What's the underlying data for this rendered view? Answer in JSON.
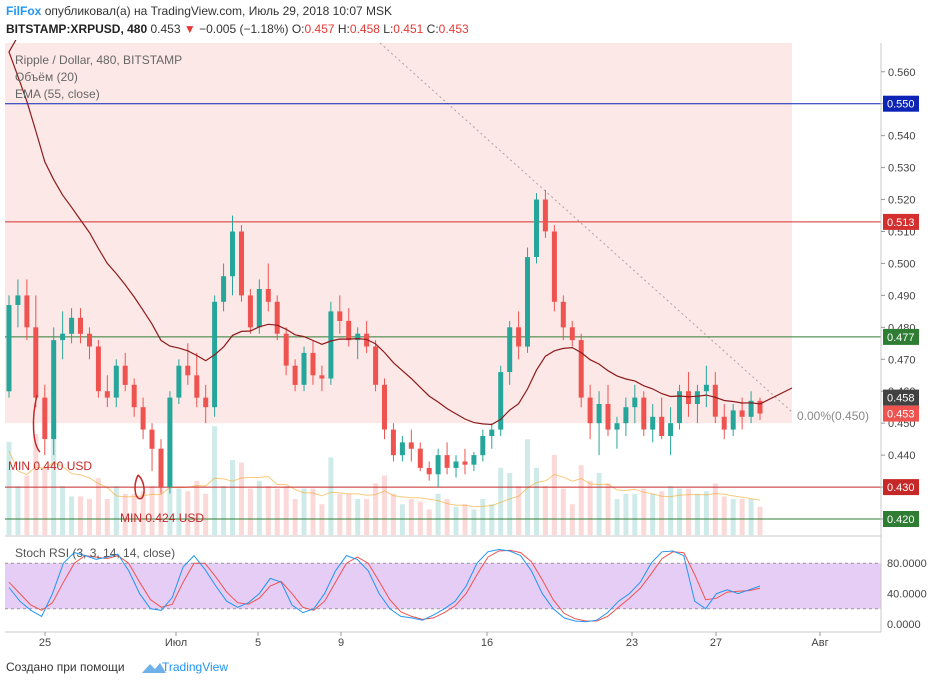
{
  "header": {
    "brand": "FilFox",
    "published": "опубликовал(а) на TradingView.com, Июль 29, 2018 10:07 MSK",
    "symbol": "BITSTAMP:XRPUSD, 480",
    "last": "0.453",
    "change": "−0.005 (−1.18%)",
    "o_label": "O:",
    "o_val": "0.457",
    "h_label": "H:",
    "h_val": "0.458",
    "l_label": "L:",
    "l_val": "0.451",
    "c_label": "C:",
    "c_val": "0.453"
  },
  "legend": {
    "title": "Ripple / Dollar, 480, BITSTAMP",
    "volume": "Объём (20)",
    "ema": "EMA (55, close)"
  },
  "chart_data": {
    "type": "candlestick",
    "ylim": [
      0.415,
      0.569
    ],
    "y_ticks": [
      "0.560",
      "0.550",
      "0.540",
      "0.530",
      "0.520",
      "0.510",
      "0.500",
      "0.490",
      "0.480",
      "0.470",
      "0.460",
      "0.450",
      "0.440",
      "0.430",
      "0.420"
    ],
    "x_ticks": [
      "25",
      "Июл",
      "5",
      "9",
      "16",
      "23",
      "27",
      "Авг"
    ],
    "price_levels": [
      {
        "value": 0.55,
        "label": "0.550",
        "color": "#0d23b5"
      },
      {
        "value": 0.513,
        "label": "0.513",
        "color": "#d32f2f"
      },
      {
        "value": 0.477,
        "label": "0.477",
        "color": "#2e7d32"
      },
      {
        "value": 0.43,
        "label": "0.430",
        "color": "#c62828"
      },
      {
        "value": 0.42,
        "label": "0.420",
        "color": "#2e7d32"
      }
    ],
    "current_price": {
      "value": 0.458,
      "label": "0.458",
      "color": "#424242"
    },
    "last_price": {
      "value": 0.453,
      "label": "0.453",
      "color": "#ef5350"
    },
    "fib_label": "0.00%(0.450)",
    "annotations": [
      "MIN 0.440 USD",
      "MIN 0.424 USD"
    ],
    "candles": [
      [
        0.46,
        0.49,
        0.458,
        0.487
      ],
      [
        0.487,
        0.495,
        0.48,
        0.49
      ],
      [
        0.49,
        0.495,
        0.476,
        0.48
      ],
      [
        0.48,
        0.49,
        0.455,
        0.458
      ],
      [
        0.458,
        0.462,
        0.44,
        0.445
      ],
      [
        0.445,
        0.48,
        0.44,
        0.476
      ],
      [
        0.476,
        0.485,
        0.47,
        0.478
      ],
      [
        0.478,
        0.486,
        0.475,
        0.483
      ],
      [
        0.483,
        0.486,
        0.475,
        0.478
      ],
      [
        0.478,
        0.48,
        0.47,
        0.474
      ],
      [
        0.474,
        0.476,
        0.458,
        0.46
      ],
      [
        0.46,
        0.465,
        0.455,
        0.458
      ],
      [
        0.458,
        0.47,
        0.455,
        0.468
      ],
      [
        0.468,
        0.472,
        0.46,
        0.462
      ],
      [
        0.462,
        0.464,
        0.452,
        0.455
      ],
      [
        0.455,
        0.458,
        0.445,
        0.448
      ],
      [
        0.448,
        0.45,
        0.435,
        0.442
      ],
      [
        0.442,
        0.445,
        0.428,
        0.43
      ],
      [
        0.43,
        0.46,
        0.428,
        0.458
      ],
      [
        0.458,
        0.47,
        0.456,
        0.468
      ],
      [
        0.468,
        0.475,
        0.462,
        0.465
      ],
      [
        0.465,
        0.472,
        0.455,
        0.458
      ],
      [
        0.458,
        0.462,
        0.45,
        0.455
      ],
      [
        0.455,
        0.49,
        0.452,
        0.488
      ],
      [
        0.488,
        0.5,
        0.485,
        0.496
      ],
      [
        0.496,
        0.515,
        0.49,
        0.51
      ],
      [
        0.51,
        0.512,
        0.488,
        0.49
      ],
      [
        0.49,
        0.492,
        0.478,
        0.48
      ],
      [
        0.48,
        0.495,
        0.478,
        0.492
      ],
      [
        0.492,
        0.5,
        0.485,
        0.488
      ],
      [
        0.488,
        0.49,
        0.476,
        0.478
      ],
      [
        0.478,
        0.48,
        0.465,
        0.468
      ],
      [
        0.468,
        0.47,
        0.46,
        0.462
      ],
      [
        0.462,
        0.474,
        0.46,
        0.472
      ],
      [
        0.472,
        0.476,
        0.462,
        0.465
      ],
      [
        0.465,
        0.468,
        0.46,
        0.464
      ],
      [
        0.464,
        0.488,
        0.462,
        0.485
      ],
      [
        0.485,
        0.49,
        0.478,
        0.482
      ],
      [
        0.482,
        0.486,
        0.474,
        0.476
      ],
      [
        0.476,
        0.48,
        0.47,
        0.478
      ],
      [
        0.478,
        0.482,
        0.472,
        0.474
      ],
      [
        0.474,
        0.476,
        0.46,
        0.462
      ],
      [
        0.462,
        0.464,
        0.445,
        0.448
      ],
      [
        0.448,
        0.45,
        0.438,
        0.44
      ],
      [
        0.44,
        0.446,
        0.438,
        0.444
      ],
      [
        0.444,
        0.448,
        0.438,
        0.442
      ],
      [
        0.442,
        0.444,
        0.435,
        0.436
      ],
      [
        0.436,
        0.438,
        0.432,
        0.434
      ],
      [
        0.434,
        0.442,
        0.43,
        0.44
      ],
      [
        0.44,
        0.444,
        0.434,
        0.436
      ],
      [
        0.436,
        0.44,
        0.433,
        0.438
      ],
      [
        0.438,
        0.442,
        0.434,
        0.437
      ],
      [
        0.437,
        0.441,
        0.435,
        0.44
      ],
      [
        0.44,
        0.448,
        0.438,
        0.446
      ],
      [
        0.446,
        0.45,
        0.442,
        0.448
      ],
      [
        0.448,
        0.468,
        0.446,
        0.466
      ],
      [
        0.466,
        0.482,
        0.462,
        0.48
      ],
      [
        0.48,
        0.485,
        0.47,
        0.474
      ],
      [
        0.474,
        0.505,
        0.472,
        0.502
      ],
      [
        0.502,
        0.522,
        0.5,
        0.52
      ],
      [
        0.52,
        0.523,
        0.508,
        0.51
      ],
      [
        0.51,
        0.512,
        0.485,
        0.488
      ],
      [
        0.488,
        0.49,
        0.476,
        0.48
      ],
      [
        0.48,
        0.482,
        0.474,
        0.476
      ],
      [
        0.476,
        0.478,
        0.455,
        0.458
      ],
      [
        0.458,
        0.462,
        0.445,
        0.45
      ],
      [
        0.45,
        0.46,
        0.44,
        0.456
      ],
      [
        0.456,
        0.462,
        0.446,
        0.448
      ],
      [
        0.448,
        0.452,
        0.442,
        0.45
      ],
      [
        0.45,
        0.458,
        0.446,
        0.455
      ],
      [
        0.455,
        0.462,
        0.45,
        0.458
      ],
      [
        0.458,
        0.46,
        0.446,
        0.448
      ],
      [
        0.448,
        0.456,
        0.444,
        0.452
      ],
      [
        0.452,
        0.458,
        0.445,
        0.446
      ],
      [
        0.446,
        0.455,
        0.44,
        0.45
      ],
      [
        0.45,
        0.462,
        0.448,
        0.46
      ],
      [
        0.46,
        0.466,
        0.452,
        0.456
      ],
      [
        0.456,
        0.462,
        0.45,
        0.46
      ],
      [
        0.46,
        0.468,
        0.455,
        0.462
      ],
      [
        0.462,
        0.466,
        0.45,
        0.452
      ],
      [
        0.452,
        0.456,
        0.445,
        0.448
      ],
      [
        0.448,
        0.456,
        0.446,
        0.454
      ],
      [
        0.454,
        0.458,
        0.448,
        0.452
      ],
      [
        0.452,
        0.46,
        0.45,
        0.457
      ],
      [
        0.457,
        0.458,
        0.451,
        0.453
      ]
    ],
    "stoch_rsi": {
      "title": "Stoch RSI (3, 3, 14, 14, close)",
      "ylim": [
        0,
        100
      ],
      "y_ticks": [
        "80.0000",
        "40.0000",
        "0.0000"
      ],
      "k": [
        48,
        30,
        18,
        10,
        40,
        80,
        94,
        90,
        85,
        88,
        92,
        70,
        40,
        20,
        18,
        35,
        75,
        90,
        72,
        50,
        30,
        22,
        28,
        40,
        60,
        55,
        25,
        15,
        20,
        40,
        70,
        90,
        85,
        70,
        40,
        20,
        10,
        8,
        5,
        12,
        20,
        30,
        50,
        80,
        95,
        98,
        96,
        90,
        70,
        40,
        20,
        8,
        4,
        3,
        5,
        15,
        30,
        40,
        55,
        80,
        95,
        96,
        90,
        30,
        20,
        40,
        45,
        40,
        45,
        50
      ],
      "d": [
        55,
        40,
        25,
        18,
        28,
        55,
        80,
        90,
        88,
        86,
        90,
        80,
        55,
        32,
        22,
        26,
        55,
        80,
        80,
        62,
        42,
        28,
        26,
        34,
        50,
        56,
        40,
        22,
        18,
        30,
        55,
        80,
        88,
        80,
        56,
        32,
        16,
        10,
        6,
        8,
        15,
        24,
        40,
        65,
        88,
        96,
        97,
        94,
        82,
        58,
        32,
        14,
        7,
        4,
        4,
        10,
        22,
        34,
        47,
        66,
        86,
        95,
        94,
        65,
        32,
        34,
        42,
        43,
        44,
        47
      ]
    }
  },
  "footer": {
    "created": "Создано при помощи",
    "brand": "TradingView"
  },
  "colors": {
    "up": "#26a69a",
    "down": "#ef5350",
    "ema": "#8d1b1b",
    "zone": "#fde8e8",
    "rsi_band": "#e6cdf5",
    "k_line": "#2196f3",
    "d_line": "#ef5350"
  }
}
